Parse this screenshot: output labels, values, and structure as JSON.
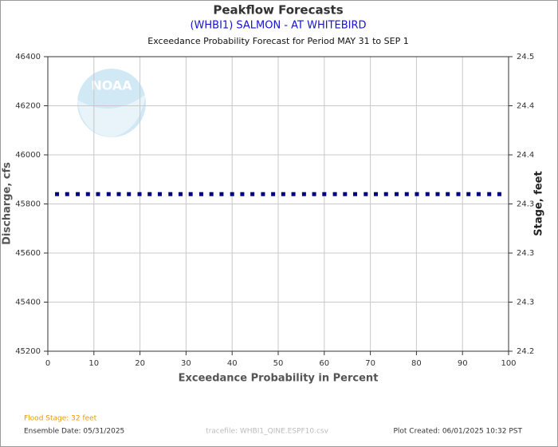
{
  "chart_data": {
    "type": "scatter",
    "title": "Peakflow Forecasts",
    "subtitle": "(WHBI1) SALMON - AT WHITEBIRD",
    "caption": "Exceedance Probability Forecast for Period MAY 31 to SEP 1",
    "xlabel": "Exceedance Probability in Percent",
    "ylabel": "Discharge, cfs",
    "y2label": "Stage, feet",
    "watermark": "NOAA",
    "x": [
      2.0,
      4.2,
      6.5,
      8.7,
      10.9,
      13.2,
      15.4,
      17.6,
      19.9,
      22.1,
      24.3,
      26.6,
      28.8,
      31.0,
      33.3,
      35.5,
      37.7,
      40.0,
      42.2,
      44.4,
      46.7,
      48.9,
      51.1,
      53.3,
      55.6,
      57.8,
      60.0,
      62.3,
      64.5,
      66.7,
      69.0,
      71.2,
      73.4,
      75.7,
      77.9,
      80.1,
      82.4,
      84.6,
      86.8,
      89.1,
      91.3,
      93.5,
      95.8,
      98.0
    ],
    "values": [
      45840,
      45840,
      45840,
      45840,
      45840,
      45840,
      45840,
      45840,
      45840,
      45840,
      45840,
      45840,
      45840,
      45840,
      45840,
      45840,
      45840,
      45840,
      45840,
      45840,
      45840,
      45840,
      45840,
      45840,
      45840,
      45840,
      45840,
      45840,
      45840,
      45840,
      45840,
      45840,
      45840,
      45840,
      45840,
      45840,
      45840,
      45840,
      45840,
      45840,
      45840,
      45840,
      45840,
      45840
    ],
    "color": "#00007f",
    "xlim": [
      0,
      100
    ],
    "xticks": [
      0,
      10,
      20,
      30,
      40,
      50,
      60,
      70,
      80,
      90,
      100
    ],
    "ylim": [
      45200,
      46400
    ],
    "yticks": [
      45200,
      45400,
      45600,
      45800,
      46000,
      46200,
      46400
    ],
    "y2lim": [
      24.22,
      24.46
    ],
    "y2ticks": [
      {
        "value": 24.22,
        "label": "24.2"
      },
      {
        "value": 24.26,
        "label": "24.3"
      },
      {
        "value": 24.3,
        "label": "24.3"
      },
      {
        "value": 24.34,
        "label": "24.3"
      },
      {
        "value": 24.38,
        "label": "24.4"
      },
      {
        "value": 24.42,
        "label": "24.4"
      },
      {
        "value": 24.46,
        "label": "24.5"
      }
    ],
    "grid": true,
    "footer": {
      "flood_stage": "Flood Stage: 32 feet",
      "ensemble_date": "Ensemble Date: 05/31/2025",
      "tracefile": "tracefile: WHBI1_QINE.ESPF10.csv",
      "plot_created": "Plot Created: 06/01/2025 10:32 PST"
    }
  }
}
